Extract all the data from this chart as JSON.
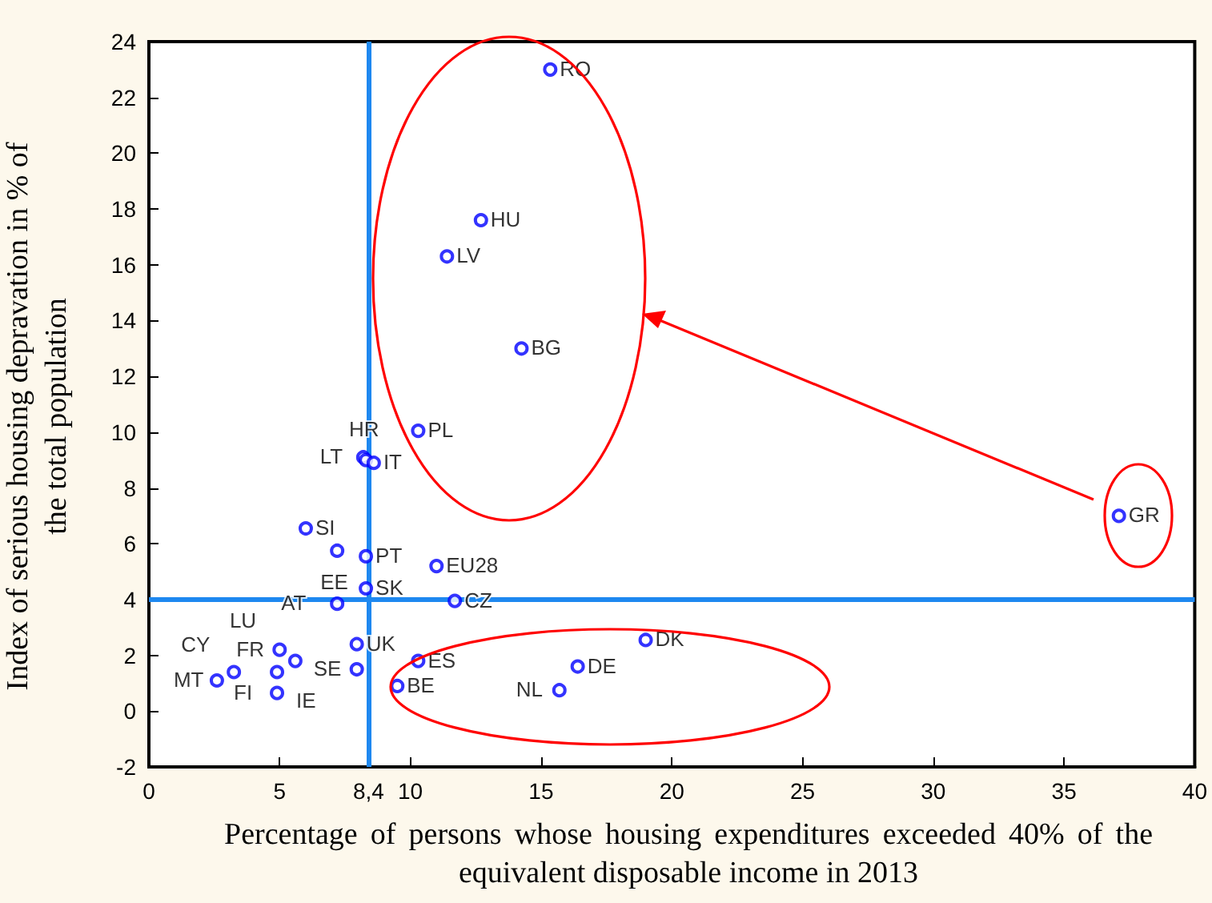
{
  "chart_data": {
    "type": "scatter",
    "xlabel": "Percentage of persons whose housing expenditures exceeded 40% of the equivalent disposable income in 2013",
    "ylabel": "Index of serious housing depravation in % of the total population",
    "series": [
      {
        "color": "#0000ff",
        "x": [
          15.35,
          12.7,
          11.4,
          14.25,
          10.3,
          8.2,
          8.3,
          8.6,
          6.0,
          7.2,
          8.3,
          8.3,
          11.0,
          11.7,
          7.2,
          7.95,
          7.95,
          10.3,
          9.5,
          5.0,
          5.6,
          4.9,
          4.9,
          3.25,
          2.6,
          19.0,
          16.4,
          15.7,
          37.1
        ],
        "values": [
          23.0,
          17.6,
          16.3,
          13.0,
          10.05,
          9.1,
          9.0,
          8.9,
          6.55,
          5.75,
          5.55,
          4.4,
          5.2,
          3.95,
          3.85,
          2.4,
          1.5,
          1.8,
          0.9,
          2.2,
          1.8,
          1.4,
          0.65,
          1.4,
          1.1,
          2.55,
          1.6,
          0.75,
          7.0
        ]
      }
    ],
    "annotations": [
      {
        "text": "RO",
        "x": 15.35,
        "y": 23.0
      },
      {
        "text": "HU",
        "x": 12.7,
        "y": 17.6
      },
      {
        "text": "LV",
        "x": 11.4,
        "y": 16.3
      },
      {
        "text": "BG",
        "x": 14.25,
        "y": 13.0
      },
      {
        "text": "PL",
        "x": 10.3,
        "y": 10.05
      },
      {
        "text": "LT",
        "x": 8.2,
        "y": 9.1
      },
      {
        "text": "HR",
        "x": 8.3,
        "y": 9.0
      },
      {
        "text": "IT",
        "x": 8.6,
        "y": 8.9
      },
      {
        "text": "SI",
        "x": 6.0,
        "y": 6.55
      },
      {
        "text": "EE",
        "x": 7.2,
        "y": 5.75
      },
      {
        "text": "PT",
        "x": 8.3,
        "y": 5.55
      },
      {
        "text": "SK",
        "x": 8.3,
        "y": 4.4
      },
      {
        "text": "EU28",
        "x": 11.0,
        "y": 5.2
      },
      {
        "text": "CZ",
        "x": 11.7,
        "y": 3.95
      },
      {
        "text": "AT",
        "x": 7.2,
        "y": 3.85
      },
      {
        "text": "UK",
        "x": 7.95,
        "y": 2.4
      },
      {
        "text": "SE",
        "x": 7.95,
        "y": 1.5
      },
      {
        "text": "ES",
        "x": 10.3,
        "y": 1.8
      },
      {
        "text": "BE",
        "x": 9.5,
        "y": 0.9
      },
      {
        "text": "FR",
        "x": 5.0,
        "y": 2.2
      },
      {
        "text": "LU",
        "x": 5.6,
        "y": 1.8
      },
      {
        "text": "IE",
        "x": 4.9,
        "y": 1.4
      },
      {
        "text": "FI",
        "x": 4.9,
        "y": 0.65
      },
      {
        "text": "CY",
        "x": 3.25,
        "y": 1.4
      },
      {
        "text": "MT",
        "x": 2.6,
        "y": 1.1
      },
      {
        "text": "DK",
        "x": 19.0,
        "y": 2.55
      },
      {
        "text": "DE",
        "x": 16.4,
        "y": 1.6
      },
      {
        "text": "NL",
        "x": 15.7,
        "y": 0.75
      },
      {
        "text": "GR",
        "x": 37.1,
        "y": 7.0
      }
    ],
    "xlim": [
      0,
      40
    ],
    "xticks": [
      0,
      5,
      {
        "value": 8.4,
        "label": "8,4"
      },
      10,
      15,
      20,
      25,
      30,
      35,
      40
    ],
    "ylim": [
      -2,
      24
    ],
    "yticks": [
      -2,
      0,
      2,
      4,
      6,
      8,
      10,
      12,
      14,
      16,
      18,
      20,
      22,
      24
    ],
    "ref_lines": [
      {
        "axis": "x",
        "value": 8.4,
        "color": "#1e88f0"
      },
      {
        "axis": "y",
        "value": 4,
        "color": "#1e88f0"
      }
    ],
    "grid": false,
    "marker": "circle"
  }
}
